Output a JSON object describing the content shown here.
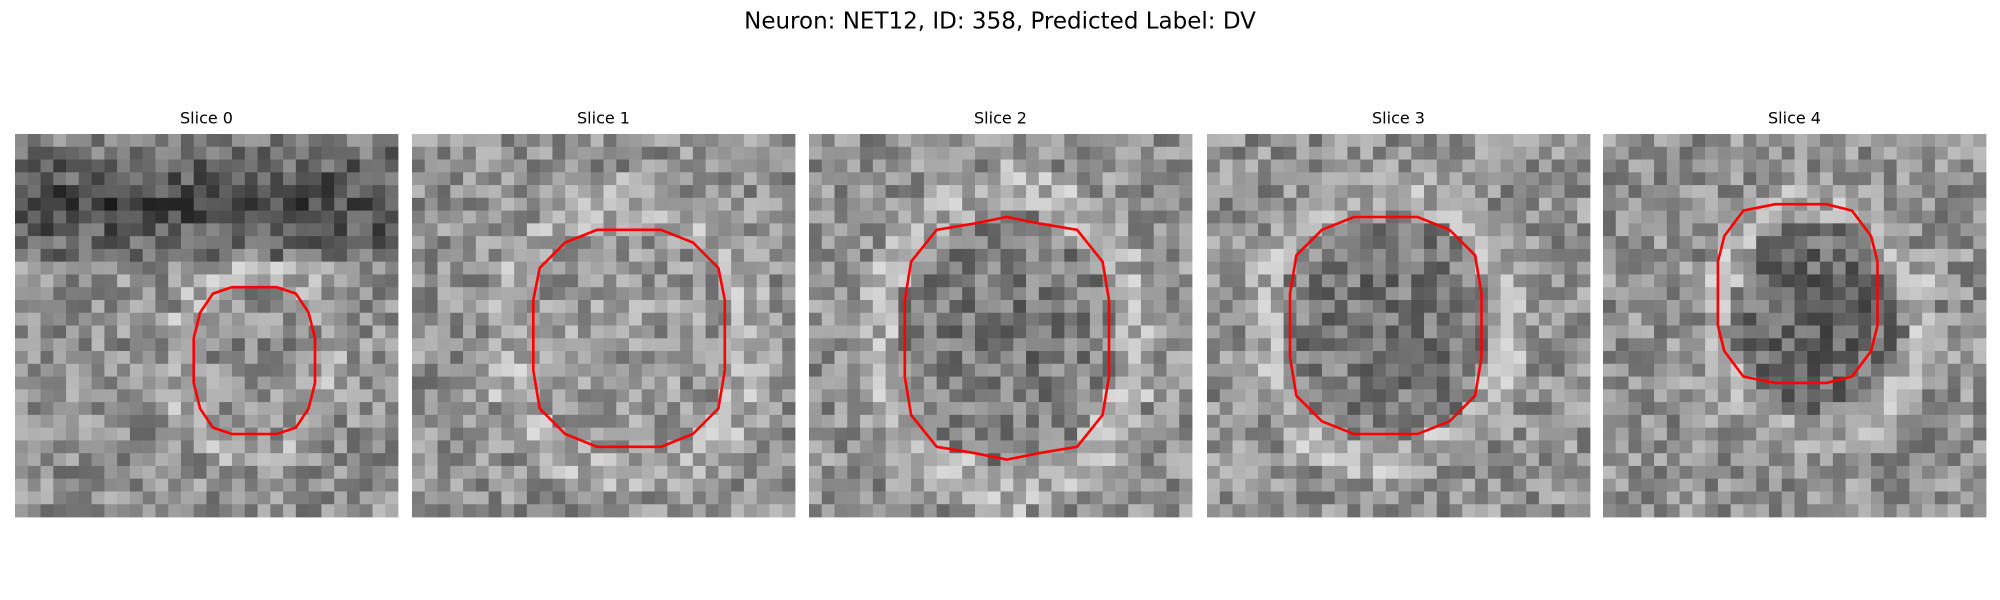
{
  "title": "Neuron: NET12, ID: 358, Predicted Label: DV",
  "panels": [
    {
      "title": "Slice 0"
    },
    {
      "title": "Slice 1"
    },
    {
      "title": "Slice 2"
    },
    {
      "title": "Slice 3"
    },
    {
      "title": "Slice 4"
    }
  ]
}
